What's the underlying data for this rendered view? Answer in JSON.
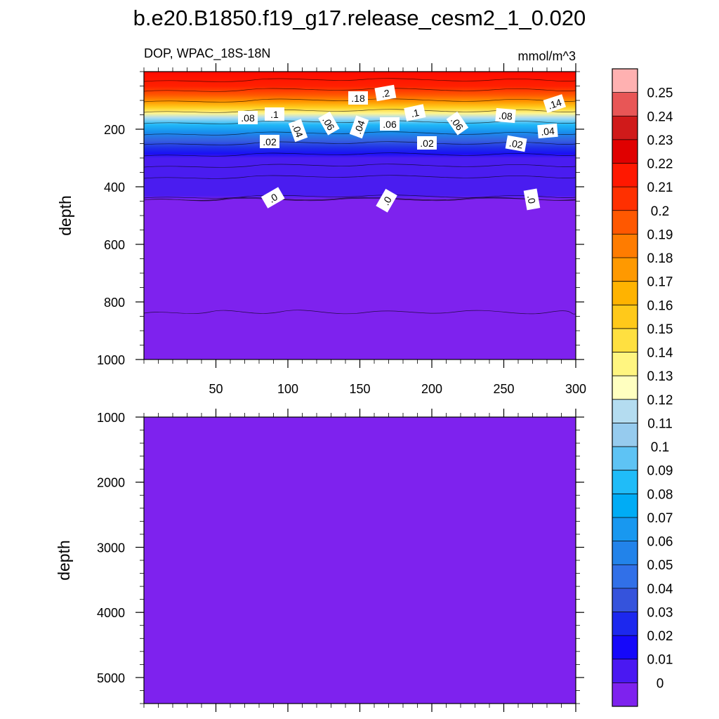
{
  "chart_data": {
    "type": "heatmap",
    "title": "b.e20.B1850.f19_g17.release_cesm2_1_0.020",
    "subtitle_left": "DOP, WPAC_18S-18N",
    "subtitle_right": "mmol/m^3",
    "colorbar": {
      "levels": [
        "0.25",
        "0.24",
        "0.23",
        "0.22",
        "0.21",
        "0.2",
        "0.19",
        "0.18",
        "0.17",
        "0.16",
        "0.15",
        "0.14",
        "0.13",
        "0.12",
        "0.11",
        "0.1",
        "0.09",
        "0.08",
        "0.07",
        "0.06",
        "0.05",
        "0.04",
        "0.03",
        "0.02",
        "0.01",
        "0"
      ],
      "colors": [
        "#ffb1b1",
        "#e85656",
        "#d01a1a",
        "#e00000",
        "#ff1800",
        "#ff3000",
        "#ff5800",
        "#ff7c00",
        "#ff9900",
        "#ffb300",
        "#ffc91a",
        "#ffe040",
        "#fff580",
        "#ffffc0",
        "#b4dcf0",
        "#96cbee",
        "#5ec3f4",
        "#20bcf8",
        "#00acf5",
        "#1898f0",
        "#2283ea",
        "#3170e8",
        "#3553dc",
        "#1c28ee",
        "#1508fa",
        "#4a18f2",
        "#7e22ee"
      ]
    },
    "panels": [
      {
        "ylabel": "depth",
        "ylim": [
          1000,
          0
        ],
        "yticks": [
          "200",
          "400",
          "600",
          "800",
          "1000"
        ],
        "xlim": [
          0,
          300
        ],
        "xticks": [
          "50",
          "100",
          "150",
          "200",
          "250",
          "300"
        ],
        "contour_labels": [
          ".18",
          ".2",
          ".08",
          ".1",
          ".1",
          ".14",
          ".08",
          ".04",
          ".06",
          ".04",
          ".06",
          ".06",
          ".04",
          ".02",
          ".02",
          ".02",
          ".0",
          ".0",
          ".0"
        ]
      },
      {
        "ylabel": "depth",
        "ylim": [
          5400,
          1000
        ],
        "yticks": [
          "1000",
          "2000",
          "3000",
          "4000",
          "5000"
        ],
        "xlim": [
          0,
          300
        ],
        "xticks": [],
        "fill_value": "0"
      }
    ]
  }
}
